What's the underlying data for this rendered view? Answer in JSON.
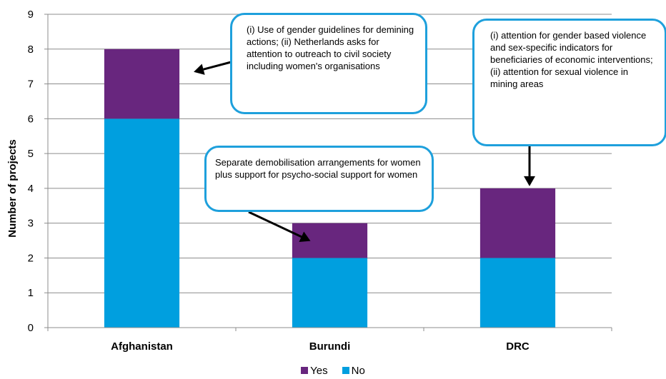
{
  "chart_data": {
    "type": "bar",
    "stacked": true,
    "categories": [
      "Afghanistan",
      "Burundi",
      "DRC"
    ],
    "series": [
      {
        "name": "No",
        "values": [
          6,
          2,
          2
        ],
        "color": "#009fdf"
      },
      {
        "name": "Yes",
        "values": [
          2,
          1,
          2
        ],
        "color": "#68267e"
      }
    ],
    "legend_order": [
      "Yes",
      "No"
    ],
    "legend_position": "bottom",
    "ylabel": "Number of projects",
    "xlabel": "",
    "ylim": [
      0,
      9
    ],
    "yticks": [
      0,
      1,
      2,
      3,
      4,
      5,
      6,
      7,
      8,
      9
    ],
    "grid": true,
    "annotations": [
      {
        "category": "Afghanistan",
        "text": "(i) Use of gender guidelines for demining actions; (ii) Netherlands asks for attention to outreach to civil society including women's organisations"
      },
      {
        "category": "Burundi",
        "text": "Separate demobilisation arrangements for women plus support for psycho-social support for women"
      },
      {
        "category": "DRC",
        "text": "(i) attention for gender based violence and sex-specific indicators for beneficiaries of economic interventions; (ii) attention for sexual violence in mining areas"
      }
    ]
  }
}
